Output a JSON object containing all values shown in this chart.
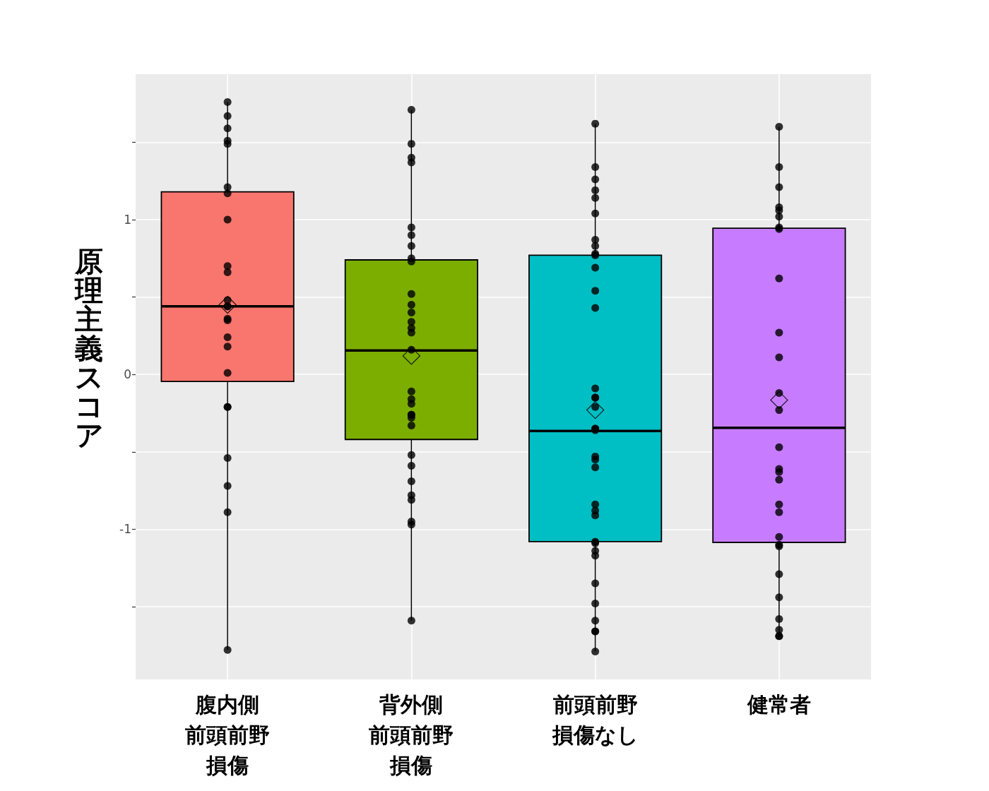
{
  "chart_data": {
    "type": "box",
    "ylabel": "原理主義スコア",
    "categories": [
      "腹内側前頭前野損傷",
      "背外側前頭前野損傷",
      "前頭前野損傷なし",
      "健常者"
    ],
    "colors": [
      "#f8766d",
      "#7cae00",
      "#00bfc4",
      "#c77cff"
    ],
    "boxes": [
      {
        "low": -1.78,
        "q1": -0.045,
        "median": 0.44,
        "q3": 1.18,
        "high": 1.76,
        "mean": 0.45
      },
      {
        "low": -1.59,
        "q1": -0.42,
        "median": 0.155,
        "q3": 0.74,
        "high": 1.71,
        "mean": 0.12
      },
      {
        "low": -1.79,
        "q1": -1.08,
        "median": -0.365,
        "q3": 0.77,
        "high": 1.62,
        "mean": -0.23
      },
      {
        "low": -1.69,
        "q1": -1.085,
        "median": -0.345,
        "q3": 0.945,
        "high": 1.6,
        "mean": -0.165
      }
    ],
    "series": [
      {
        "type": "scatter",
        "color": "#000000",
        "x": [
          "腹内側前頭前野損傷",
          "腹内側前頭前野損傷",
          "腹内側前頭前野損傷",
          "腹内側前頭前野損傷",
          "腹内側前頭前野損傷",
          "腹内側前頭前野損傷",
          "腹内側前頭前野損傷",
          "腹内側前頭前野損傷",
          "腹内側前頭前野損傷",
          "腹内側前頭前野損傷",
          "腹内側前頭前野損傷",
          "腹内側前頭前野損傷",
          "腹内側前頭前野損傷",
          "腹内側前頭前野損傷",
          "腹内側前頭前野損傷",
          "腹内側前頭前野損傷",
          "腹内側前頭前野損傷",
          "腹内側前頭前野損傷",
          "腹内側前頭前野損傷",
          "腹内側前頭前野損傷",
          "腹内側前頭前野損傷",
          "腹内側前頭前野損傷",
          "腹内側前頭前野損傷",
          "腹内側前頭前野損傷",
          "背外側前頭前野損傷",
          "背外側前頭前野損傷",
          "背外側前頭前野損傷",
          "背外側前頭前野損傷",
          "背外側前頭前野損傷",
          "背外側前頭前野損傷",
          "背外側前頭前野損傷",
          "背外側前頭前野損傷",
          "背外側前頭前野損傷",
          "背外側前頭前野損傷",
          "背外側前頭前野損傷",
          "背外側前頭前野損傷",
          "背外側前頭前野損傷",
          "背外側前頭前野損傷",
          "背外側前頭前野損傷",
          "背外側前頭前野損傷",
          "背外側前頭前野損傷",
          "背外側前頭前野損傷",
          "背外側前頭前野損傷",
          "背外側前頭前野損傷",
          "背外側前頭前野損傷",
          "背外側前頭前野損傷",
          "背外側前頭前野損傷",
          "背外側前頭前野損傷",
          "背外側前頭前野損傷",
          "背外側前頭前野損傷",
          "背外側前頭前野損傷",
          "背外側前頭前野損傷",
          "背外側前頭前野損傷",
          "背外側前頭前野損傷",
          "背外側前頭前野損傷",
          "前頭前野損傷なし",
          "前頭前野損傷なし",
          "前頭前野損傷なし",
          "前頭前野損傷なし",
          "前頭前野損傷なし",
          "前頭前野損傷なし",
          "前頭前野損傷なし",
          "前頭前野損傷なし",
          "前頭前野損傷なし",
          "前頭前野損傷なし",
          "前頭前野損傷なし",
          "前頭前野損傷なし",
          "前頭前野損傷なし",
          "前頭前野損傷なし",
          "前頭前野損傷なし",
          "前頭前野損傷なし",
          "前頭前野損傷なし",
          "前頭前野損傷なし",
          "前頭前野損傷なし",
          "前頭前野損傷なし",
          "前頭前野損傷なし",
          "前頭前野損傷なし",
          "前頭前野損傷なし",
          "前頭前野損傷なし",
          "前頭前野損傷なし",
          "前頭前野損傷なし",
          "前頭前野損傷なし",
          "前頭前野損傷なし",
          "前頭前野損傷なし",
          "前頭前野損傷なし",
          "前頭前野損傷なし",
          "前頭前野損傷なし",
          "前頭前野損傷なし",
          "前頭前野損傷なし",
          "前頭前野損傷なし",
          "前頭前野損傷なし",
          "健常者",
          "健常者",
          "健常者",
          "健常者",
          "健常者",
          "健常者",
          "健常者",
          "健常者",
          "健常者",
          "健常者",
          "健常者",
          "健常者",
          "健常者",
          "健常者",
          "健常者",
          "健常者",
          "健常者",
          "健常者",
          "健常者",
          "健常者",
          "健常者",
          "健常者",
          "健常者",
          "健常者",
          "健常者",
          "健常者",
          "健常者",
          "健常者"
        ],
        "values": [
          1.76,
          1.67,
          1.59,
          1.51,
          1.49,
          1.21,
          1.17,
          1.0,
          0.7,
          0.66,
          0.48,
          0.44,
          0.44,
          0.36,
          0.35,
          0.24,
          0.18,
          0.01,
          -0.21,
          -0.21,
          -0.54,
          -0.72,
          -0.89,
          -1.78,
          1.71,
          1.49,
          1.4,
          1.37,
          0.95,
          0.9,
          0.83,
          0.75,
          0.73,
          0.52,
          0.45,
          0.4,
          0.34,
          0.3,
          0.27,
          0.16,
          -0.11,
          -0.16,
          -0.19,
          -0.26,
          -0.26,
          -0.28,
          -0.33,
          -0.52,
          -0.59,
          -0.69,
          -0.78,
          -0.81,
          -0.95,
          -0.97,
          -1.59,
          1.62,
          1.34,
          1.26,
          1.19,
          1.14,
          1.04,
          0.87,
          0.83,
          0.78,
          0.77,
          0.69,
          0.54,
          0.43,
          -0.09,
          -0.15,
          -0.15,
          -0.21,
          -0.35,
          -0.35,
          -0.36,
          -0.53,
          -0.55,
          -0.6,
          -0.84,
          -0.88,
          -0.91,
          -1.08,
          -1.09,
          -1.14,
          -1.17,
          -1.35,
          -1.48,
          -1.59,
          -1.66,
          -1.66,
          -1.79,
          1.6,
          1.34,
          1.21,
          1.08,
          1.06,
          1.02,
          0.95,
          0.94,
          0.62,
          0.27,
          0.11,
          -0.12,
          -0.23,
          -0.47,
          -0.61,
          -0.63,
          -0.68,
          -0.84,
          -0.89,
          -1.05,
          -1.1,
          -1.11,
          -1.29,
          -1.44,
          -1.58,
          -1.65,
          -1.69,
          -1.69
        ]
      }
    ],
    "ylim": [
      -1.97,
      1.94
    ],
    "yticks": [
      {
        "value": -1.5,
        "label": null
      },
      -1,
      {
        "value": -0.5,
        "label": null
      },
      0,
      {
        "value": 0.5,
        "label": null
      },
      1,
      {
        "value": 1.5,
        "label": null
      }
    ],
    "grid": true,
    "marker": "circle"
  }
}
